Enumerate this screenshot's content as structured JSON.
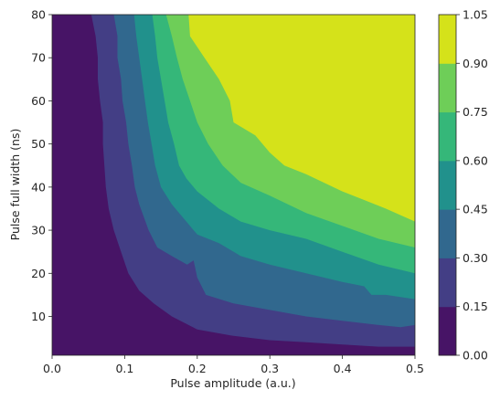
{
  "chart_data": {
    "type": "filled-contour",
    "xlabel": "Pulse amplitude (a.u.)",
    "ylabel": "Pulse full width (ns)",
    "xlim": [
      0.0,
      0.5
    ],
    "ylim": [
      1,
      80
    ],
    "x_ticks": [
      "0.0",
      "0.1",
      "0.2",
      "0.3",
      "0.4",
      "0.5"
    ],
    "y_ticks": [
      "10",
      "20",
      "30",
      "40",
      "50",
      "60",
      "70",
      "80"
    ],
    "colorbar": {
      "levels": [
        "0.00",
        "0.15",
        "0.30",
        "0.45",
        "0.60",
        "0.75",
        "0.90",
        "1.05"
      ],
      "colors": [
        "#471466",
        "#433e85",
        "#31688e",
        "#21918c",
        "#35b779",
        "#6ece58",
        "#d5e21a"
      ]
    },
    "contour_bands": [
      {
        "range": "0.15-1.05",
        "boundary": [
          [
            0.054,
            80
          ],
          [
            0.06,
            75
          ],
          [
            0.063,
            70
          ],
          [
            0.063,
            65
          ],
          [
            0.066,
            60
          ],
          [
            0.07,
            55
          ],
          [
            0.07,
            50
          ],
          [
            0.072,
            45
          ],
          [
            0.074,
            40
          ],
          [
            0.078,
            35
          ],
          [
            0.085,
            30
          ],
          [
            0.095,
            25
          ],
          [
            0.105,
            20
          ],
          [
            0.12,
            16
          ],
          [
            0.14,
            13
          ],
          [
            0.165,
            10
          ],
          [
            0.2,
            7
          ],
          [
            0.25,
            5.5
          ],
          [
            0.3,
            4.5
          ],
          [
            0.35,
            4
          ],
          [
            0.4,
            3.5
          ],
          [
            0.45,
            3
          ],
          [
            0.5,
            3
          ]
        ]
      },
      {
        "range": "0.30-1.05",
        "boundary": [
          [
            0.085,
            80
          ],
          [
            0.09,
            75
          ],
          [
            0.09,
            70
          ],
          [
            0.095,
            65
          ],
          [
            0.097,
            60
          ],
          [
            0.102,
            55
          ],
          [
            0.105,
            50
          ],
          [
            0.11,
            45
          ],
          [
            0.114,
            40
          ],
          [
            0.12,
            36
          ],
          [
            0.133,
            30
          ],
          [
            0.145,
            26
          ],
          [
            0.165,
            24
          ],
          [
            0.186,
            22
          ],
          [
            0.195,
            23
          ],
          [
            0.2,
            19
          ],
          [
            0.212,
            15
          ],
          [
            0.25,
            13
          ],
          [
            0.3,
            11.5
          ],
          [
            0.35,
            10
          ],
          [
            0.4,
            9
          ],
          [
            0.45,
            8
          ],
          [
            0.48,
            7.5
          ],
          [
            0.5,
            8
          ]
        ]
      },
      {
        "range": "0.45-1.05",
        "boundary": [
          [
            0.113,
            80
          ],
          [
            0.116,
            75
          ],
          [
            0.12,
            70
          ],
          [
            0.124,
            65
          ],
          [
            0.128,
            60
          ],
          [
            0.132,
            55
          ],
          [
            0.137,
            50
          ],
          [
            0.142,
            45
          ],
          [
            0.15,
            40
          ],
          [
            0.165,
            36
          ],
          [
            0.2,
            29
          ],
          [
            0.23,
            27
          ],
          [
            0.26,
            24
          ],
          [
            0.3,
            22
          ],
          [
            0.35,
            20
          ],
          [
            0.4,
            18
          ],
          [
            0.43,
            17
          ],
          [
            0.44,
            15
          ],
          [
            0.46,
            15
          ],
          [
            0.5,
            14
          ]
        ]
      },
      {
        "range": "0.60-1.05",
        "boundary": [
          [
            0.138,
            80
          ],
          [
            0.142,
            75
          ],
          [
            0.145,
            70
          ],
          [
            0.15,
            65
          ],
          [
            0.155,
            60
          ],
          [
            0.16,
            55
          ],
          [
            0.168,
            50
          ],
          [
            0.175,
            45
          ],
          [
            0.185,
            42
          ],
          [
            0.2,
            39
          ],
          [
            0.23,
            35
          ],
          [
            0.26,
            32
          ],
          [
            0.3,
            30
          ],
          [
            0.35,
            28
          ],
          [
            0.4,
            25
          ],
          [
            0.45,
            22
          ],
          [
            0.5,
            20
          ]
        ]
      },
      {
        "range": "0.75-1.05",
        "boundary": [
          [
            0.157,
            80
          ],
          [
            0.165,
            75
          ],
          [
            0.172,
            70
          ],
          [
            0.18,
            65
          ],
          [
            0.19,
            60
          ],
          [
            0.2,
            55
          ],
          [
            0.215,
            50
          ],
          [
            0.235,
            45
          ],
          [
            0.26,
            41
          ],
          [
            0.3,
            38
          ],
          [
            0.35,
            34
          ],
          [
            0.4,
            31
          ],
          [
            0.45,
            28
          ],
          [
            0.5,
            26
          ]
        ]
      },
      {
        "range": "0.90-1.05",
        "boundary": [
          [
            0.188,
            80
          ],
          [
            0.19,
            75
          ],
          [
            0.21,
            70
          ],
          [
            0.23,
            65
          ],
          [
            0.245,
            60
          ],
          [
            0.25,
            55
          ],
          [
            0.28,
            52
          ],
          [
            0.3,
            48
          ],
          [
            0.32,
            45
          ],
          [
            0.35,
            43
          ],
          [
            0.4,
            39
          ],
          [
            0.43,
            37
          ],
          [
            0.46,
            35
          ],
          [
            0.5,
            32
          ]
        ]
      }
    ]
  }
}
